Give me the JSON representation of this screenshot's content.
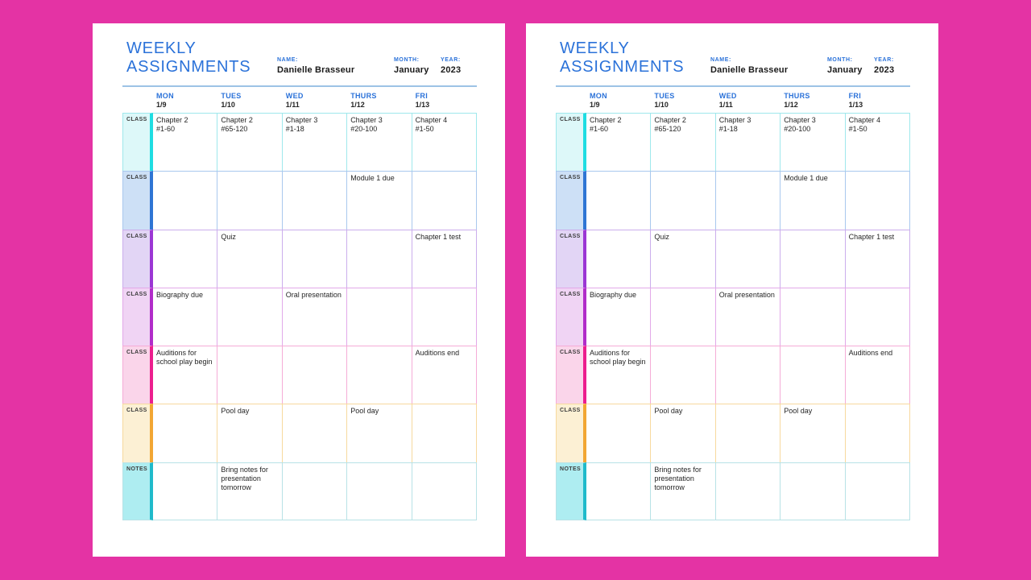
{
  "background_color": "#E433A4",
  "accent_blue": "#2B72D9",
  "rule_color": "#9DC3E6",
  "page": {
    "title_line1": "WEEKLY",
    "title_line2": "ASSIGNMENTS",
    "fields": {
      "name_label": "NAME:",
      "name_value": "Danielle Brasseur",
      "month_label": "MONTH:",
      "month_value": "January",
      "year_label": "YEAR:",
      "year_value": "2023"
    },
    "table": {
      "columns": [
        {
          "day": "MON",
          "date": "1/9"
        },
        {
          "day": "TUES",
          "date": "1/10"
        },
        {
          "day": "WED",
          "date": "1/11"
        },
        {
          "day": "THURS",
          "date": "1/12"
        },
        {
          "day": "FRI",
          "date": "1/13"
        }
      ],
      "rows": [
        {
          "label": "CLASS",
          "colors": {
            "bg": "#DDF8F9",
            "stripe": "#1FDDE2",
            "border": "#9FE8EC"
          },
          "cells": [
            "Chapter 2\n#1-60",
            "Chapter 2\n#65-120",
            "Chapter 3\n#1-18",
            "Chapter 3\n#20-100",
            "Chapter 4\n#1-50"
          ]
        },
        {
          "label": "CLASS",
          "colors": {
            "bg": "#CDE0F6",
            "stripe": "#2E75D4",
            "border": "#A9C8EE"
          },
          "cells": [
            "",
            "",
            "",
            "Module 1 due",
            ""
          ]
        },
        {
          "label": "CLASS",
          "colors": {
            "bg": "#E2D5F5",
            "stripe": "#9B36D4",
            "border": "#CBAEEC"
          },
          "cells": [
            "",
            "Quiz",
            "",
            "",
            "Chapter 1 test"
          ]
        },
        {
          "label": "CLASS",
          "colors": {
            "bg": "#F0D4F4",
            "stripe": "#B12CC9",
            "border": "#E2A9E9"
          },
          "cells": [
            "Biography due",
            "",
            "Oral presentation",
            "",
            ""
          ]
        },
        {
          "label": "CLASS",
          "colors": {
            "bg": "#FAD5EA",
            "stripe": "#EC1E8E",
            "border": "#F5ACD7"
          },
          "cells": [
            "Auditions for school play begin",
            "",
            "",
            "",
            "Auditions end"
          ]
        },
        {
          "label": "CLASS",
          "colors": {
            "bg": "#FCF0D4",
            "stripe": "#F2A633",
            "border": "#F7D99E"
          },
          "cells": [
            "",
            "Pool day",
            "",
            "Pool day",
            ""
          ]
        },
        {
          "label": "NOTES",
          "colors": {
            "bg": "#AEEDF1",
            "stripe": "#1FBACA",
            "border": "#B8E2E6"
          },
          "cells": [
            "",
            "Bring notes for presentation tomorrow",
            "",
            "",
            ""
          ]
        }
      ]
    }
  }
}
